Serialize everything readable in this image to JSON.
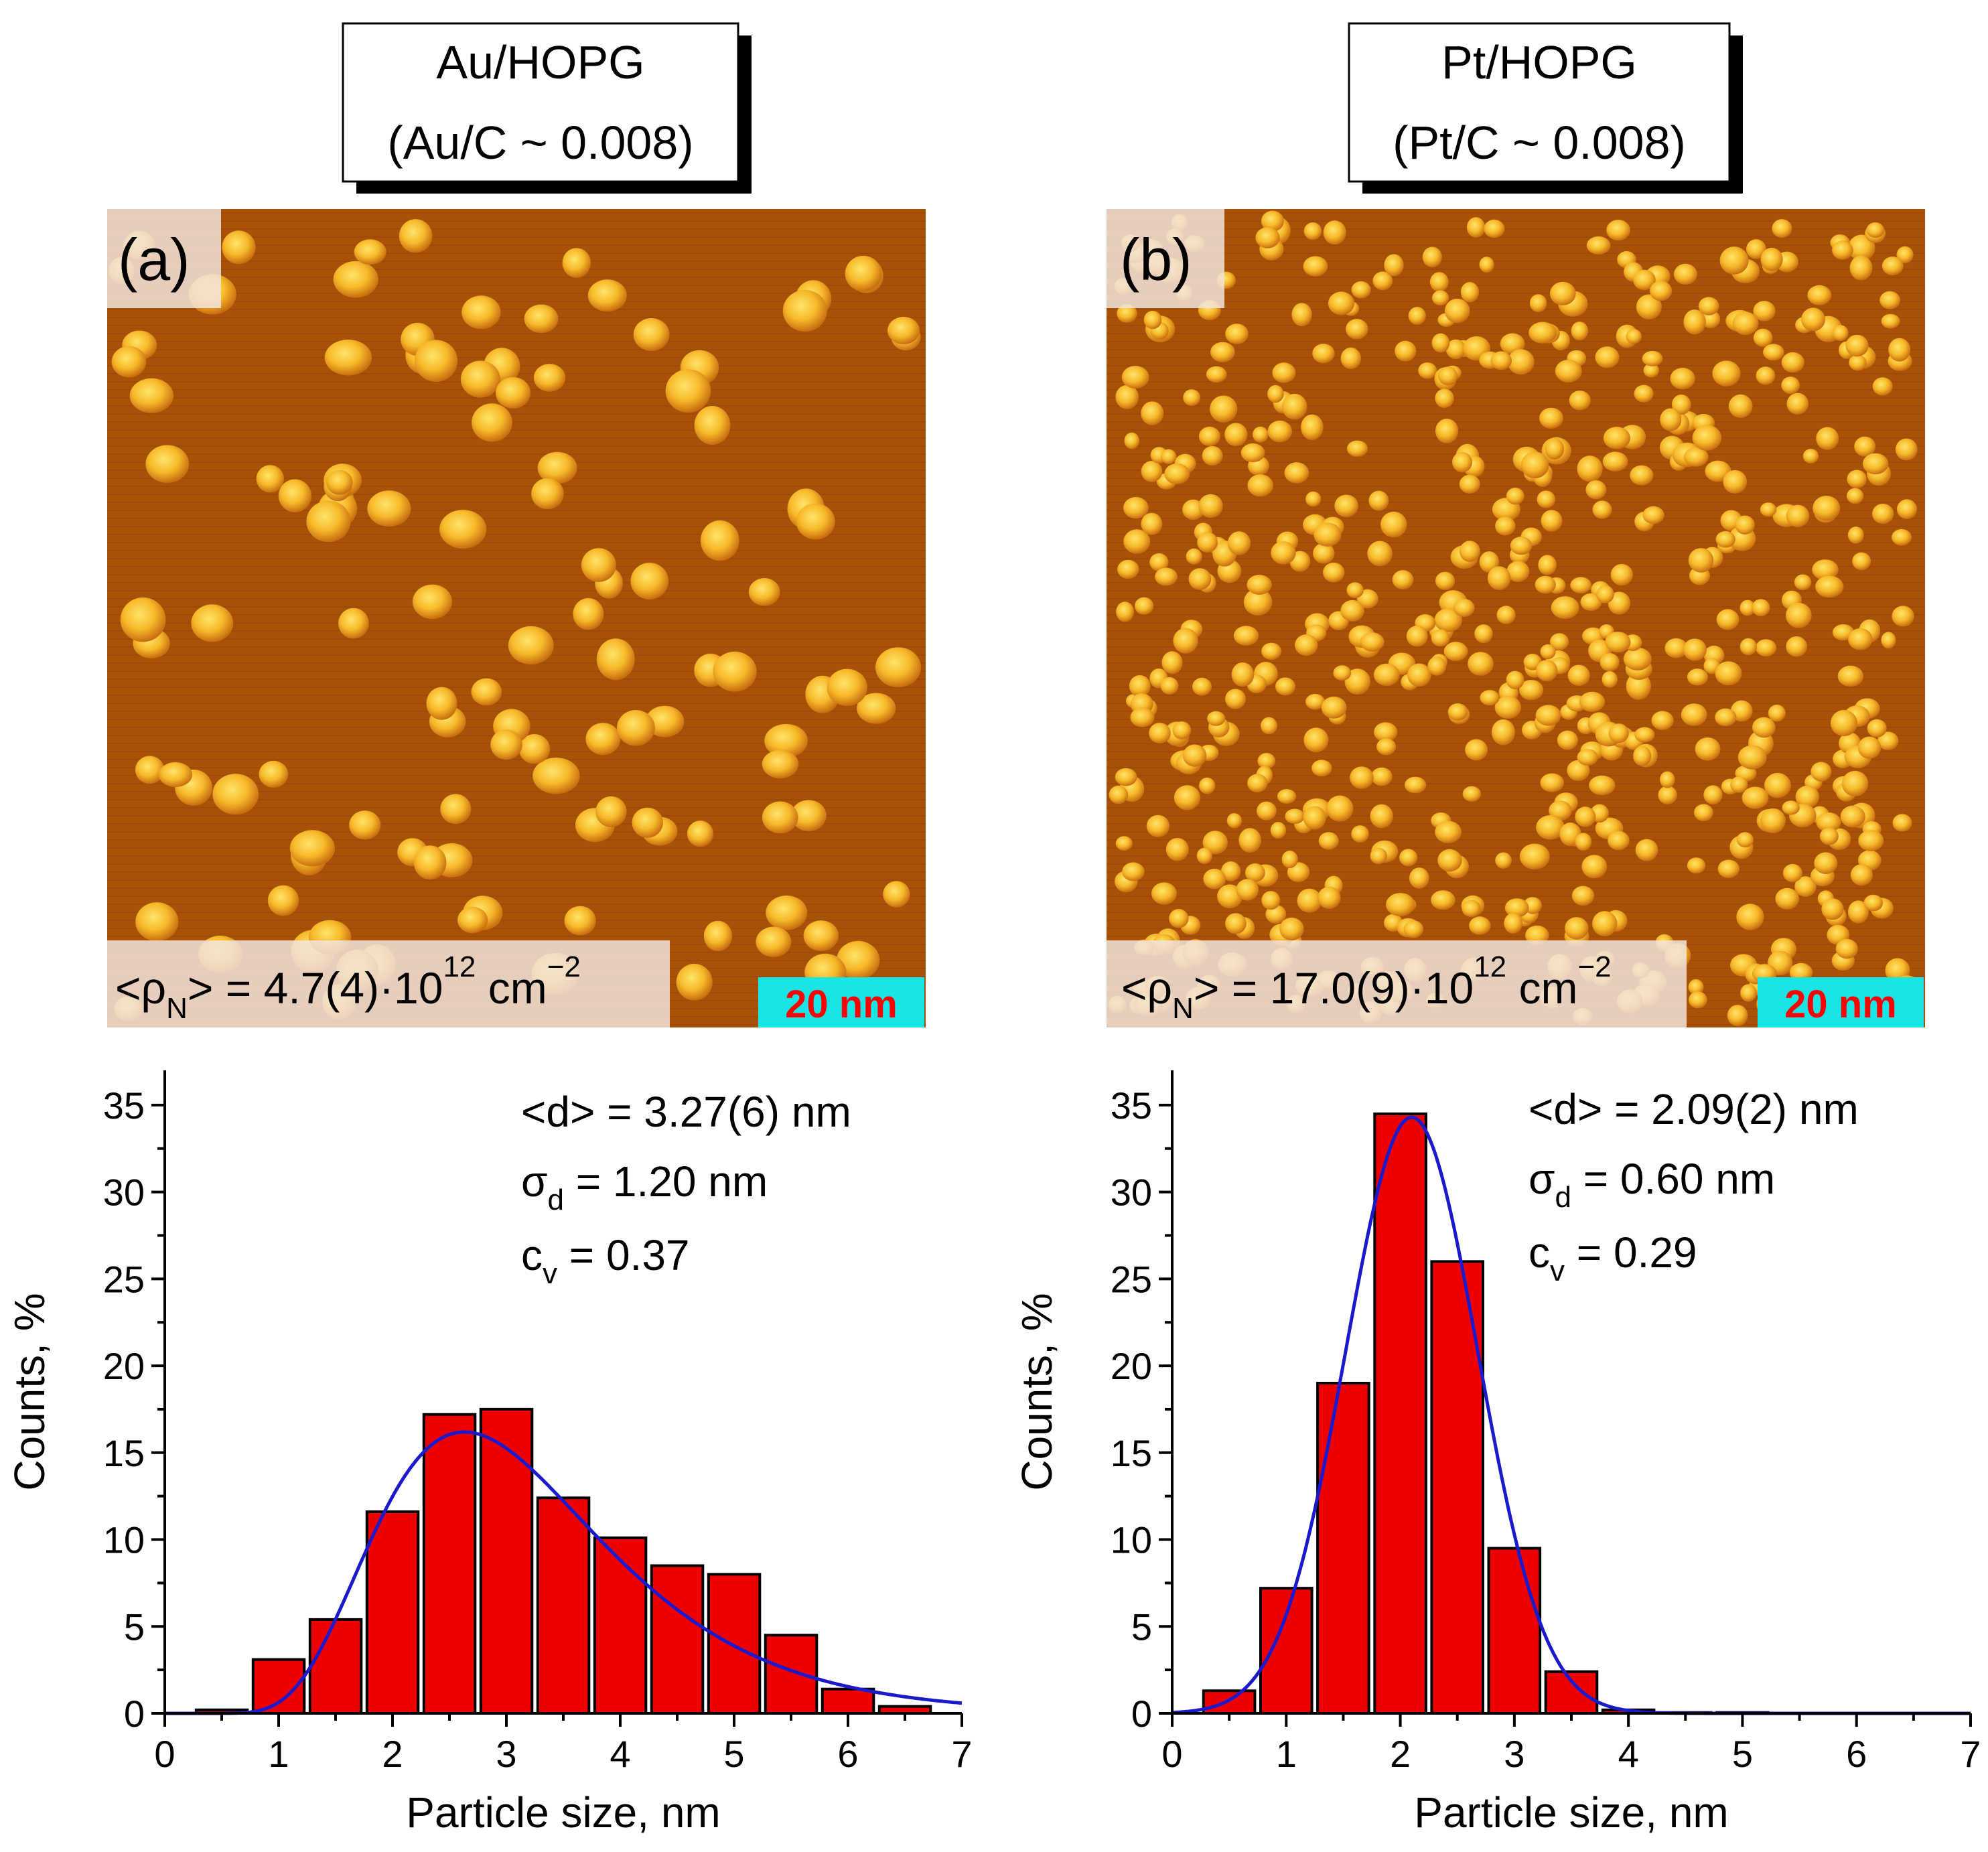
{
  "panels": [
    {
      "id": "a",
      "title_line1": "Au/HOPG",
      "title_line2": "(Au/C ~ 0.008)",
      "panel_label": "(a)",
      "density_prefix": "<ρ",
      "density_sub": "N",
      "density_value": "> = 4.7(4)·10",
      "density_exp": "12",
      "density_unit": " cm",
      "density_unit_exp": "−2",
      "scale_bar": "20 nm",
      "stats": {
        "mean_label": "<d> = 3.27(6) nm",
        "sigma_symbol": "σ",
        "sigma_sub": "d",
        "sigma_value": " =  1.20 nm",
        "cv_symbol": "c",
        "cv_sub": "v",
        "cv_value": " = 0.37"
      }
    },
    {
      "id": "b",
      "title_line1": "Pt/HOPG",
      "title_line2": "(Pt/C ~ 0.008)",
      "panel_label": "(b)",
      "density_prefix": "<ρ",
      "density_sub": "N",
      "density_value": "> = 17.0(9)·10",
      "density_exp": "12",
      "density_unit": " cm",
      "density_unit_exp": "−2",
      "scale_bar": "20 nm",
      "stats": {
        "mean_label": "<d> = 2.09(2) nm",
        "sigma_symbol": "σ",
        "sigma_sub": "d",
        "sigma_value": " = 0.60 nm",
        "cv_symbol": "c",
        "cv_sub": "v",
        "cv_value": " = 0.29"
      }
    }
  ],
  "colors": {
    "bar_fill": "#ee0000",
    "fit_line": "#1a1acc",
    "scale_bar_bg": "#18e6e6",
    "scale_bar_text": "#ff0000",
    "afm_background": "#a85208",
    "afm_particle": "#ffd040"
  },
  "chart_data": [
    {
      "type": "bar",
      "panel": "a",
      "xlabel": "Particle size, nm",
      "ylabel": "Counts, %",
      "xlim": [
        0,
        7
      ],
      "ylim": [
        0,
        37
      ],
      "xticks": [
        0,
        1,
        2,
        3,
        4,
        5,
        6,
        7
      ],
      "yticks": [
        0,
        5,
        10,
        15,
        20,
        25,
        30,
        35
      ],
      "bin_width": 0.45,
      "bar_centers": [
        0.5,
        1.0,
        1.5,
        2.0,
        2.5,
        3.0,
        3.5,
        4.0,
        4.5,
        5.0,
        5.5,
        6.0,
        6.5
      ],
      "values": [
        0.2,
        3.1,
        5.4,
        11.6,
        17.2,
        17.5,
        12.4,
        10.1,
        8.5,
        8.0,
        4.5,
        1.4,
        0.4
      ],
      "fit": {
        "type": "lognormal",
        "median": 3.04,
        "sigma_ln": 0.38,
        "amplitude": 17.4
      }
    },
    {
      "type": "bar",
      "panel": "b",
      "xlabel": "Particle size, nm",
      "ylabel": "Counts, %",
      "xlim": [
        0,
        7
      ],
      "ylim": [
        0,
        37
      ],
      "xticks": [
        0,
        1,
        2,
        3,
        4,
        5,
        6,
        7
      ],
      "yticks": [
        0,
        5,
        10,
        15,
        20,
        25,
        30,
        35
      ],
      "bin_width": 0.45,
      "bar_centers": [
        0.5,
        1.0,
        1.5,
        2.0,
        2.5,
        3.0,
        3.5,
        4.0,
        4.5,
        5.0
      ],
      "values": [
        1.3,
        7.2,
        19.0,
        34.5,
        26.0,
        9.5,
        2.4,
        0.2,
        0.05,
        0.05
      ],
      "fit": {
        "type": "gaussian",
        "mean": 2.1,
        "sigma": 0.58,
        "amplitude": 34.3
      }
    }
  ]
}
